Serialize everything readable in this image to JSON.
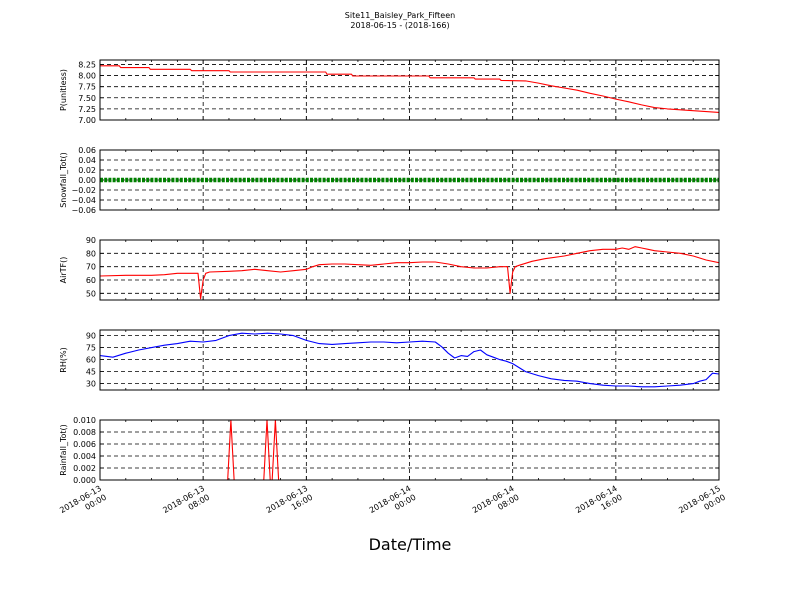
{
  "figure": {
    "title_line1": "Site11_Baisley_Park_Fifteen",
    "title_line2": "2018-06-15 - (2018-166)",
    "xlabel": "Date/Time",
    "x_ticks": [
      {
        "l1": "2018-06-13",
        "l2": "00:00"
      },
      {
        "l1": "2018-06-13",
        "l2": "08:00"
      },
      {
        "l1": "2018-06-13",
        "l2": "16:00"
      },
      {
        "l1": "2018-06-14",
        "l2": "00:00"
      },
      {
        "l1": "2018-06-14",
        "l2": "08:00"
      },
      {
        "l1": "2018-06-14",
        "l2": "16:00"
      },
      {
        "l1": "2018-06-15",
        "l2": "00:00"
      }
    ]
  },
  "chart_data": [
    {
      "type": "line",
      "ylabel": "P(unitless)",
      "ylim": [
        7.0,
        8.35
      ],
      "yticks": [
        7.0,
        7.25,
        7.5,
        7.75,
        8.0,
        8.25
      ],
      "ytick_labels": [
        "7.00",
        "7.25",
        "7.50",
        "7.75",
        "8.00",
        "8.25"
      ],
      "xlim": [
        0,
        48
      ],
      "grid": true,
      "color": "#ff0000",
      "x": [
        0,
        1.5,
        1.6,
        3.8,
        3.9,
        7.0,
        7.1,
        10.0,
        10.1,
        17.5,
        17.6,
        19.5,
        19.6,
        25.5,
        25.6,
        29.0,
        29.1,
        31.0,
        31.1,
        33.0,
        34.0,
        35.0,
        36.0,
        37.0,
        38.0,
        39.0,
        40.0,
        41.0,
        42.0,
        43.0,
        44.0,
        45.0,
        46.0,
        47.0,
        48.0
      ],
      "y": [
        8.22,
        8.22,
        8.18,
        8.18,
        8.14,
        8.14,
        8.11,
        8.11,
        8.08,
        8.08,
        8.03,
        8.03,
        7.99,
        7.99,
        7.95,
        7.95,
        7.92,
        7.92,
        7.89,
        7.88,
        7.83,
        7.77,
        7.72,
        7.67,
        7.6,
        7.54,
        7.47,
        7.41,
        7.34,
        7.28,
        7.25,
        7.23,
        7.21,
        7.19,
        7.17
      ]
    },
    {
      "type": "scatter",
      "ylabel": "Snowfall_Tot()",
      "ylim": [
        -0.06,
        0.06
      ],
      "yticks": [
        -0.06,
        -0.04,
        -0.02,
        0.0,
        0.02,
        0.04,
        0.06
      ],
      "ytick_labels": [
        "−0.06",
        "−0.04",
        "−0.02",
        "0.00",
        "0.02",
        "0.04",
        "0.06"
      ],
      "xlim": [
        0,
        48
      ],
      "grid": true,
      "color": "#008000",
      "x": [
        0,
        48
      ],
      "y": [
        0.0,
        0.0
      ]
    },
    {
      "type": "line",
      "ylabel": "AirTF()",
      "ylim": [
        45,
        90
      ],
      "yticks": [
        50,
        60,
        70,
        80,
        90
      ],
      "ytick_labels": [
        "50",
        "60",
        "70",
        "80",
        "90"
      ],
      "xlim": [
        0,
        48
      ],
      "grid": true,
      "color": "#ff0000",
      "x": [
        0,
        2,
        4,
        5,
        6,
        7,
        7.6,
        7.8,
        8.0,
        8.2,
        8.5,
        10,
        11,
        12,
        13,
        14,
        15,
        16,
        16.5,
        17,
        18,
        19,
        20,
        21,
        22,
        23,
        24,
        25,
        26,
        27,
        28,
        29,
        30,
        31,
        31.6,
        31.8,
        32.0,
        32.2,
        32.5,
        33.5,
        34.5,
        36,
        37,
        38,
        39,
        40,
        40.5,
        41,
        41.5,
        42,
        42.5,
        43,
        44,
        45,
        46,
        47,
        48
      ],
      "y": [
        63,
        63.5,
        63.5,
        64,
        65,
        65,
        65,
        46,
        60,
        65,
        66,
        66.5,
        67,
        68,
        67,
        66,
        67,
        68,
        70,
        71.5,
        72,
        72,
        71.5,
        71,
        72,
        73,
        73,
        73.5,
        73.5,
        72,
        70,
        69,
        69,
        70,
        70,
        50,
        66,
        70,
        71,
        74,
        76,
        78,
        80,
        82,
        83,
        83,
        84,
        83,
        85,
        84,
        83,
        82,
        81,
        80,
        78,
        75,
        73
      ]
    },
    {
      "type": "line",
      "ylabel": "RH(%)",
      "ylim": [
        22,
        97
      ],
      "yticks": [
        30,
        45,
        60,
        75,
        90
      ],
      "ytick_labels": [
        "30",
        "45",
        "60",
        "75",
        "90"
      ],
      "xlim": [
        0,
        48
      ],
      "grid": true,
      "color": "#0000ff",
      "x": [
        0,
        1,
        2,
        3,
        4,
        5,
        6,
        7,
        8,
        9,
        10,
        11,
        12,
        13,
        14,
        15,
        16,
        17,
        18,
        19,
        20,
        21,
        22,
        23,
        24,
        25,
        26,
        26.5,
        27,
        27.5,
        28,
        28.5,
        29,
        29.5,
        30,
        30.5,
        31,
        31.5,
        32,
        33,
        34,
        35,
        36,
        37,
        38,
        39,
        40,
        41,
        42,
        43,
        44,
        45,
        46,
        46.5,
        47,
        47.5,
        48
      ],
      "y": [
        65,
        63,
        68,
        72,
        75,
        78,
        80,
        83,
        82,
        84,
        90,
        93,
        92,
        93,
        92,
        90,
        84,
        80,
        79,
        80,
        81,
        82,
        82,
        81,
        82,
        83,
        82,
        76,
        68,
        62,
        65,
        64,
        70,
        72,
        66,
        63,
        60,
        58,
        55,
        45,
        40,
        36,
        34,
        33,
        30,
        28,
        27,
        27,
        26,
        26,
        27,
        28,
        30,
        33,
        35,
        43,
        42
      ]
    },
    {
      "type": "line",
      "ylabel": "Rainfall_Tot()",
      "ylim": [
        0.0,
        0.01
      ],
      "yticks": [
        0.0,
        0.002,
        0.004,
        0.006,
        0.008,
        0.01
      ],
      "ytick_labels": [
        "0.000",
        "0.002",
        "0.004",
        "0.006",
        "0.008",
        "0.010"
      ],
      "xlim": [
        0,
        48
      ],
      "grid": true,
      "color": "#ff0000",
      "x": [
        0,
        9.9,
        10.15,
        10.4,
        12.7,
        12.95,
        13.2,
        13.35,
        13.6,
        13.85,
        48
      ],
      "y": [
        0,
        0,
        0.01,
        0,
        0,
        0.01,
        0,
        0,
        0.01,
        0,
        0
      ]
    }
  ]
}
